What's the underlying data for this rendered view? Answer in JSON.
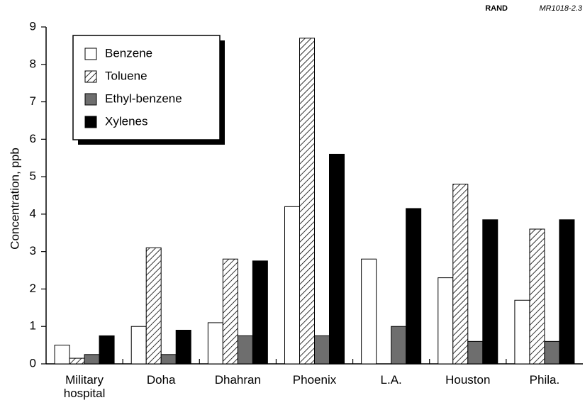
{
  "chart_data": {
    "type": "bar",
    "source_org": "RAND",
    "source_id": "MR1018-2.3",
    "y_label": "Concentration, ppb",
    "categories": [
      "Military hospital",
      "Doha",
      "Dhahran",
      "Phoenix",
      "L.A.",
      "Houston",
      "Phila."
    ],
    "series": [
      {
        "name": "Benzene",
        "color": "#ffffff",
        "pattern": "solid",
        "values": [
          0.5,
          1.0,
          1.1,
          4.2,
          2.8,
          2.3,
          1.7
        ]
      },
      {
        "name": "Toluene",
        "color": "#ffffff",
        "pattern": "hatch",
        "values": [
          0.15,
          3.1,
          2.8,
          8.7,
          null,
          4.8,
          3.6
        ]
      },
      {
        "name": "Ethyl-benzene",
        "color": "#6e6e6e",
        "pattern": "solid",
        "values": [
          0.25,
          0.25,
          0.75,
          0.75,
          1.0,
          0.6,
          0.6
        ]
      },
      {
        "name": "Xylenes",
        "color": "#000000",
        "pattern": "solid",
        "values": [
          0.75,
          0.9,
          2.75,
          5.6,
          4.15,
          3.85,
          3.85
        ]
      }
    ],
    "ylim": [
      0,
      9
    ],
    "yticks": [
      0,
      1,
      2,
      3,
      4,
      5,
      6,
      7,
      8,
      9
    ],
    "grid": false,
    "legend": "upper left"
  }
}
